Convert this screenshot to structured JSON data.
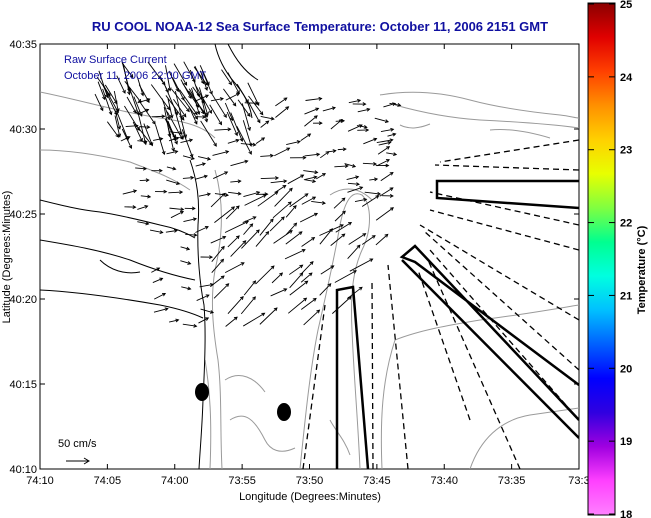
{
  "title": "RU COOL  NOAA-12  Sea Surface Temperature:  October 11, 2006 2151 GMT",
  "legend": {
    "line1": "Raw Surface Current",
    "line2": "October 11, 2006 22:00 GMT"
  },
  "axes": {
    "xlabel": "Longitude (Degrees:Minutes)",
    "ylabel": "Latitude (Degrees:Minutes)",
    "x_ticks": [
      "74:10",
      "74:05",
      "74:00",
      "73:55",
      "73:50",
      "73:45",
      "73:40",
      "73:35",
      "73:3"
    ],
    "y_ticks": [
      "40:35",
      "40:30",
      "40:25",
      "40:20",
      "40:15",
      "40:10"
    ]
  },
  "scale_label": "50 cm/s",
  "colorbar": {
    "label": "Temperature (°C)",
    "ticks": [
      "25",
      "24",
      "23",
      "22",
      "21",
      "20",
      "19",
      "18"
    ],
    "colors": [
      "#8b0000",
      "#e00000",
      "#ff4000",
      "#ff9000",
      "#ffd000",
      "#e8ff00",
      "#80ff40",
      "#00ff90",
      "#00ffe0",
      "#00c0ff",
      "#0060ff",
      "#0000ff",
      "#3000e0",
      "#a000e0",
      "#ff40ff",
      "#ff80ff"
    ]
  }
}
